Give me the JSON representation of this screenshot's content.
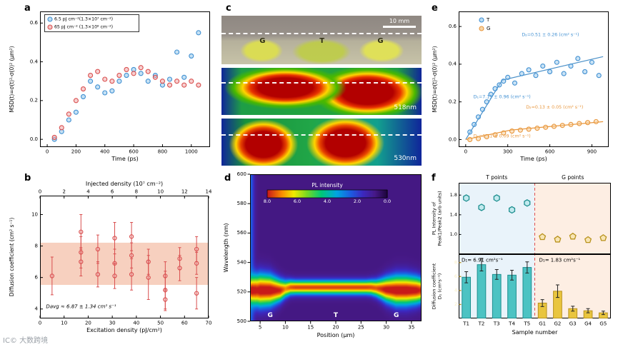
{
  "figure": {
    "panel_labels": {
      "a": "a",
      "b": "b",
      "c": "c",
      "d": "d",
      "e": "e",
      "f": "f"
    },
    "watermark": "IC© 大数跨境"
  },
  "panels": {
    "c": {
      "label_g1": "G",
      "label_t": "T",
      "label_g2": "G",
      "scalebar": "10 mm",
      "wl1": "518nm",
      "wl2": "530nm"
    }
  },
  "chart_data": [
    {
      "id": "a",
      "type": "scatter",
      "xlabel": "Time (ps)",
      "ylabel": "MSD(t)=σ(t)²-σ(0)² (μm²)",
      "xlim": [
        -50,
        1130
      ],
      "ylim": [
        -0.04,
        0.66
      ],
      "xticks": [
        0,
        200,
        400,
        600,
        800,
        1000
      ],
      "yticks": [
        0.0,
        0.2,
        0.4,
        0.6
      ],
      "ytick_labels": [
        "0.0",
        "0.2",
        "0.4",
        "0.6"
      ],
      "legend": [
        {
          "label": "6.5 pJ cm⁻²(1.3×10⁷ cm⁻²)",
          "edge": "#3f8fd2",
          "fill": "#bcdcf2"
        },
        {
          "label": "65 pJ cm⁻² (1.3×10⁸ cm⁻²)",
          "edge": "#d94f4f",
          "fill": "#f3c3c3"
        }
      ],
      "series": [
        {
          "name": "6.5 pJ",
          "edge": "#3f8fd2",
          "fill": "rgba(150,200,235,0.55)",
          "x": [
            50,
            100,
            150,
            200,
            250,
            300,
            350,
            400,
            450,
            500,
            550,
            600,
            650,
            700,
            750,
            800,
            850,
            900,
            950,
            1000,
            1050
          ],
          "y": [
            0.0,
            0.04,
            0.1,
            0.14,
            0.22,
            0.3,
            0.27,
            0.24,
            0.25,
            0.3,
            0.33,
            0.36,
            0.34,
            0.3,
            0.33,
            0.28,
            0.31,
            0.45,
            0.32,
            0.43,
            0.55
          ]
        },
        {
          "name": "65 pJ",
          "edge": "#d94f4f",
          "fill": "rgba(240,170,170,0.55)",
          "x": [
            50,
            100,
            150,
            200,
            250,
            300,
            350,
            400,
            450,
            500,
            550,
            600,
            650,
            700,
            750,
            800,
            850,
            900,
            950,
            1000,
            1050
          ],
          "y": [
            0.01,
            0.06,
            0.13,
            0.2,
            0.26,
            0.33,
            0.35,
            0.31,
            0.3,
            0.33,
            0.36,
            0.34,
            0.37,
            0.35,
            0.32,
            0.3,
            0.28,
            0.3,
            0.28,
            0.3,
            0.28
          ]
        }
      ]
    },
    {
      "id": "b",
      "type": "scatter",
      "xlabel": "Excitation density (pJ/cm²)",
      "top_xlabel": "Injected density (10⁷ cm⁻²)",
      "top_scale": 5,
      "ylabel": "Diffusion coefficient (cm² s⁻¹)",
      "xlim": [
        0,
        70
      ],
      "ylim": [
        3.4,
        11.2
      ],
      "xticks": [
        0,
        10,
        20,
        30,
        40,
        50,
        60,
        70
      ],
      "top_xticks": [
        0,
        2,
        4,
        6,
        8,
        10,
        12,
        14
      ],
      "yticks": [
        4,
        6,
        8,
        10
      ],
      "band": {
        "y0": 5.53,
        "y1": 8.21,
        "color": "rgba(246,200,180,0.85)"
      },
      "annotation": "Davg ≈ 6.87 ± 1.34 cm² s⁻¹",
      "series": [
        {
          "name": "diffusion coefficient",
          "edge": "#d94f4f",
          "fill": "rgba(240,170,170,0.45)",
          "r": 2.6,
          "x": [
            5,
            17,
            17,
            17,
            24,
            24,
            31,
            31,
            31,
            38,
            38,
            38,
            45,
            45,
            52,
            52,
            52,
            58,
            58,
            65,
            65,
            65
          ],
          "y": [
            6.1,
            8.9,
            7.6,
            7.0,
            7.8,
            6.2,
            8.5,
            6.9,
            6.1,
            8.6,
            7.4,
            6.2,
            7.0,
            6.0,
            6.1,
            5.2,
            4.6,
            7.2,
            6.6,
            7.8,
            6.9,
            5.0
          ],
          "err": [
            1.2,
            1.1,
            1.0,
            0.9,
            0.9,
            0.8,
            1.0,
            0.9,
            0.8,
            0.9,
            0.8,
            1.0,
            0.8,
            1.4,
            0.9,
            1.2,
            0.7,
            0.7,
            0.8,
            0.8,
            0.7,
            1.0
          ]
        }
      ]
    },
    {
      "id": "d",
      "type": "heatmap",
      "xlabel": "Position (μm)",
      "ylabel": "Wavelength (nm)",
      "colorbar": {
        "label": "PL intensity",
        "ticks": [
          "8.0",
          "6.0",
          "4.0",
          "2.0",
          "0.0"
        ]
      },
      "xlim": [
        3,
        37
      ],
      "ylim": [
        500,
        600
      ],
      "xticks": [
        5,
        10,
        15,
        20,
        25,
        30,
        35
      ],
      "yticks": [
        500,
        520,
        540,
        560,
        580,
        600
      ],
      "region_labels": [
        {
          "text": "G",
          "x": 7
        },
        {
          "text": "T",
          "x": 20
        },
        {
          "text": "G",
          "x": 32
        }
      ],
      "profile": {
        "positions": [
          3,
          4,
          5,
          7,
          9,
          10,
          11,
          12,
          14,
          16,
          18,
          20,
          22,
          24,
          26,
          27,
          28,
          29,
          30,
          32,
          34,
          36,
          37
        ],
        "amp": [
          6.5,
          8.5,
          9,
          9,
          8.5,
          7.5,
          8,
          8.2,
          8.2,
          8.2,
          8.2,
          8.2,
          8.2,
          8.2,
          8.2,
          8.1,
          8,
          8.4,
          8.8,
          9,
          9,
          8.8,
          8.4
        ],
        "width": [
          5.5,
          7,
          7.5,
          7,
          5,
          4,
          3.4,
          3.2,
          3.2,
          3.2,
          3.2,
          3.2,
          3.2,
          3.2,
          3.2,
          3.4,
          3.8,
          4.6,
          5.6,
          6.8,
          6.8,
          6.2,
          5.6
        ],
        "center": [
          521,
          521,
          521,
          521,
          521,
          522,
          523,
          523,
          523,
          523,
          523,
          523,
          523,
          523,
          523,
          523,
          522.5,
          522,
          521.5,
          521,
          521,
          521,
          521
        ],
        "base": 0.9,
        "scale": 9.5
      }
    },
    {
      "id": "e",
      "type": "scatter",
      "xlabel": "Time (ps)",
      "ylabel": "MSD(t)=σ(t)²-σ(0)² (μm²)",
      "xlim": [
        -50,
        1020
      ],
      "ylim": [
        -0.04,
        0.68
      ],
      "xticks": [
        0,
        300,
        600,
        900
      ],
      "yticks": [
        0.0,
        0.2,
        0.4,
        0.6
      ],
      "ytick_labels": [
        "0.0",
        "0.2",
        "0.4",
        "0.6"
      ],
      "legend": [
        {
          "label": "T",
          "edge": "#3f8fd2",
          "fill": "#bcdcf2"
        },
        {
          "label": "G",
          "edge": "#e8963c",
          "fill": "#f8d6a8"
        }
      ],
      "lines": [
        {
          "color": "#4a90c8",
          "pts": [
            [
              0,
              0
            ],
            [
              260,
              0.315
            ],
            [
              980,
              0.44
            ]
          ]
        },
        {
          "color": "#e8963c",
          "pts": [
            [
              0,
              0
            ],
            [
              320,
              0.05
            ],
            [
              980,
              0.095
            ]
          ]
        }
      ],
      "annotations": [
        {
          "text": "D₂=0.51 ± 0.26 (cm² s⁻¹)",
          "color": "#3f8fd2",
          "x": 400,
          "y": 0.555
        },
        {
          "text": "D₁=7.15 ± 0.96 (cm² s⁻¹)",
          "color": "#3f8fd2",
          "x": 55,
          "y": 0.225
        },
        {
          "text": "D₂=0.13 ± 0.05 (cm² s⁻¹)",
          "color": "#e8963c",
          "x": 430,
          "y": 0.17
        },
        {
          "text": "D₁=0.71 ± 0.09 (cm² s⁻¹)",
          "color": "#e8963c",
          "x": 55,
          "y": 0.018
        }
      ],
      "series": [
        {
          "name": "T",
          "edge": "#3f8fd2",
          "fill": "rgba(150,200,235,0.5)",
          "x": [
            30,
            60,
            90,
            120,
            150,
            180,
            210,
            240,
            270,
            300,
            350,
            400,
            450,
            500,
            550,
            600,
            650,
            700,
            750,
            800,
            850,
            900,
            950
          ],
          "y": [
            0.04,
            0.08,
            0.12,
            0.16,
            0.2,
            0.24,
            0.27,
            0.29,
            0.31,
            0.33,
            0.3,
            0.35,
            0.37,
            0.34,
            0.39,
            0.36,
            0.41,
            0.35,
            0.39,
            0.43,
            0.36,
            0.41,
            0.34
          ]
        },
        {
          "name": "G",
          "edge": "#e8963c",
          "fill": "rgba(248,205,150,0.5)",
          "x": [
            30,
            90,
            150,
            210,
            270,
            330,
            390,
            450,
            510,
            570,
            630,
            690,
            750,
            810,
            870,
            930
          ],
          "y": [
            0.0,
            0.005,
            0.015,
            0.025,
            0.035,
            0.045,
            0.05,
            0.055,
            0.06,
            0.065,
            0.07,
            0.075,
            0.08,
            0.085,
            0.09,
            0.095
          ]
        }
      ]
    },
    {
      "id": "f",
      "type": "composite",
      "headers": {
        "left": "T points",
        "right": "G points"
      },
      "categories": [
        "T1",
        "T2",
        "T3",
        "T4",
        "T5",
        "G1",
        "G2",
        "G3",
        "G4",
        "G5"
      ],
      "xlabel": "Sample number",
      "top": {
        "ylabel_lines": [
          "PL Intensity of",
          "Peak1/Peak2 (arb units)"
        ],
        "ylim": [
          0.6,
          2.05
        ],
        "yticks": [
          1.0,
          1.4,
          1.8
        ],
        "ytick_labels": [
          "1.0",
          "1.4",
          "1.8"
        ],
        "t_values": [
          1.74,
          1.55,
          1.74,
          1.5,
          1.64
        ],
        "g_values": [
          0.95,
          0.9,
          0.96,
          0.89,
          0.93
        ]
      },
      "bottom": {
        "ylabel_lines": [
          "Diffusion coefficient",
          "D₁ (cm²s⁻¹)"
        ],
        "ylim": [
          0,
          9.2
        ],
        "yticks": [
          2,
          4,
          6,
          8
        ],
        "t_values": [
          5.9,
          7.7,
          6.3,
          6.2,
          7.3
        ],
        "t_err": [
          0.8,
          0.9,
          0.7,
          0.7,
          0.8
        ],
        "g_values": [
          2.2,
          3.9,
          1.4,
          1.1,
          0.8
        ],
        "g_err": [
          0.5,
          0.9,
          0.35,
          0.3,
          0.25
        ],
        "ann_left": "D₁= 6.91 cm²s⁻¹",
        "ann_right": "D₁= 1.83 cm²s⁻¹"
      },
      "colors": {
        "t_edge": "#1d8f8f",
        "t_fill": "#4cc3c3",
        "g_edge": "#b8921c",
        "g_fill": "#e9c53e",
        "left_bg": "#e9f3fa",
        "right_bg": "#fdeee3",
        "divider": "#e05050"
      }
    }
  ]
}
